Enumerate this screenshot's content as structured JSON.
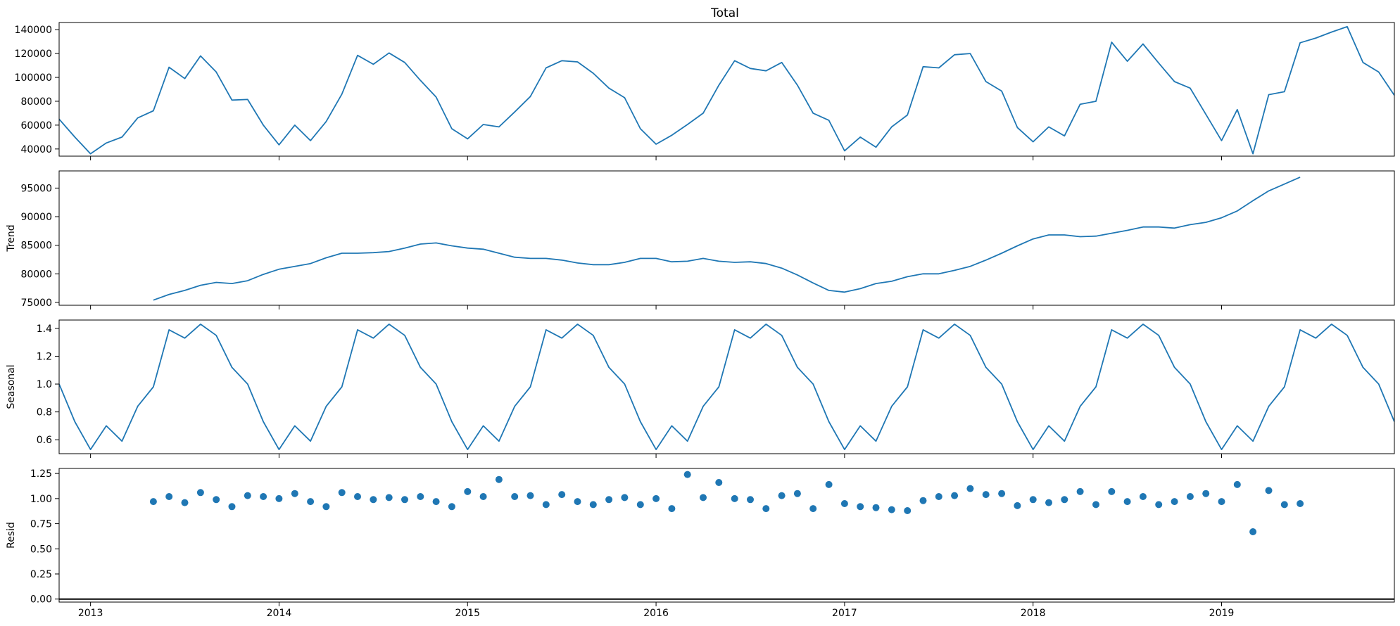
{
  "chart_data": {
    "type": "line",
    "title": "Total",
    "x_start": "2012-11",
    "x_end": "2019-12",
    "x_ticks": [
      "2013",
      "2014",
      "2015",
      "2016",
      "2017",
      "2018",
      "2019"
    ],
    "line_color": "#1f77b4",
    "panels": [
      {
        "name": "Total",
        "ylabel": "",
        "type": "line",
        "ylim": [
          34000,
          146000
        ],
        "yticks": [
          "40000",
          "60000",
          "80000",
          "100000",
          "120000",
          "140000"
        ],
        "start": "2012-11",
        "values": [
          65000,
          50000,
          36000,
          45000,
          50000,
          66000,
          72000,
          108500,
          99000,
          118000,
          104500,
          81000,
          81500,
          60000,
          43500,
          60000,
          47000,
          63000,
          86000,
          118500,
          111000,
          120500,
          112500,
          97500,
          83500,
          57000,
          48500,
          60500,
          58500,
          71000,
          84000,
          108000,
          114000,
          113000,
          103500,
          91000,
          83000,
          57000,
          44000,
          51500,
          60500,
          70000,
          93500,
          114000,
          107500,
          105500,
          112500,
          93500,
          70000,
          64000,
          38500,
          50000,
          41500,
          58500,
          68500,
          109000,
          108000,
          119000,
          120000,
          96500,
          88500,
          58000,
          46000,
          58500,
          51000,
          77500,
          80000,
          129500,
          113500,
          128000,
          112000,
          96500,
          91000,
          69000,
          47000,
          73000,
          36000,
          85500,
          88000,
          129000,
          133000,
          138000,
          142500,
          112500,
          104500,
          85000
        ]
      },
      {
        "name": "Trend",
        "ylabel": "Trend",
        "type": "line",
        "ylim": [
          74500,
          98000
        ],
        "yticks": [
          "75000",
          "80000",
          "85000",
          "90000",
          "95000"
        ],
        "start": "2013-05",
        "values": [
          75400,
          76400,
          77100,
          78000,
          78500,
          78300,
          78800,
          79900,
          80800,
          81300,
          81800,
          82800,
          83600,
          83600,
          83700,
          83900,
          84500,
          85200,
          85400,
          84900,
          84500,
          84300,
          83600,
          82900,
          82700,
          82700,
          82400,
          81900,
          81600,
          81600,
          82000,
          82700,
          82700,
          82100,
          82200,
          82700,
          82200,
          82000,
          82100,
          81800,
          81000,
          79800,
          78400,
          77100,
          76800,
          77400,
          78300,
          78700,
          79500,
          80000,
          80000,
          80600,
          81300,
          82400,
          83600,
          84900,
          86100,
          86800,
          86800,
          86500,
          86600,
          87100,
          87600,
          88200,
          88200,
          88000,
          88600,
          89000,
          89800,
          91000,
          92800,
          94500,
          95700,
          96900
        ]
      },
      {
        "name": "Seasonal",
        "ylabel": "Seasonal",
        "type": "line",
        "ylim": [
          0.5,
          1.46
        ],
        "yticks": [
          "0.6",
          "0.8",
          "1.0",
          "1.2",
          "1.4"
        ],
        "start": "2012-11",
        "values": [
          1.0,
          0.73,
          0.53,
          0.7,
          0.59,
          0.84,
          0.98,
          1.39,
          1.33,
          1.43,
          1.35,
          1.12,
          1.0,
          0.73,
          0.53,
          0.7,
          0.59,
          0.84,
          0.98,
          1.39,
          1.33,
          1.43,
          1.35,
          1.12,
          1.0,
          0.73,
          0.53,
          0.7,
          0.59,
          0.84,
          0.98,
          1.39,
          1.33,
          1.43,
          1.35,
          1.12,
          1.0,
          0.73,
          0.53,
          0.7,
          0.59,
          0.84,
          0.98,
          1.39,
          1.33,
          1.43,
          1.35,
          1.12,
          1.0,
          0.73,
          0.53,
          0.7,
          0.59,
          0.84,
          0.98,
          1.39,
          1.33,
          1.43,
          1.35,
          1.12,
          1.0,
          0.73,
          0.53,
          0.7,
          0.59,
          0.84,
          0.98,
          1.39,
          1.33,
          1.43,
          1.35,
          1.12,
          1.0,
          0.73,
          0.53,
          0.7,
          0.59,
          0.84,
          0.98,
          1.39,
          1.33,
          1.43,
          1.35,
          1.12,
          1.0,
          0.73
        ]
      },
      {
        "name": "Resid",
        "ylabel": "Resid",
        "type": "scatter",
        "ylim": [
          -0.03,
          1.3
        ],
        "yticks": [
          "0.00",
          "0.25",
          "0.50",
          "0.75",
          "1.00",
          "1.25"
        ],
        "zero_line": true,
        "start": "2013-05",
        "values": [
          0.97,
          1.02,
          0.96,
          1.06,
          0.99,
          0.92,
          1.03,
          1.02,
          1.0,
          1.05,
          0.97,
          0.92,
          1.06,
          1.02,
          0.99,
          1.01,
          0.99,
          1.02,
          0.97,
          0.92,
          1.07,
          1.02,
          1.19,
          1.02,
          1.03,
          0.94,
          1.04,
          0.97,
          0.94,
          0.99,
          1.01,
          0.94,
          1.0,
          0.9,
          1.24,
          1.01,
          1.16,
          1.0,
          0.99,
          0.9,
          1.03,
          1.05,
          0.9,
          1.14,
          0.95,
          0.92,
          0.91,
          0.89,
          0.88,
          0.98,
          1.02,
          1.03,
          1.1,
          1.04,
          1.05,
          0.93,
          0.99,
          0.96,
          0.99,
          1.07,
          0.94,
          1.07,
          0.97,
          1.02,
          0.94,
          0.97,
          1.02,
          1.05,
          0.97,
          1.14,
          0.67,
          1.08,
          0.94,
          0.95
        ]
      }
    ]
  }
}
